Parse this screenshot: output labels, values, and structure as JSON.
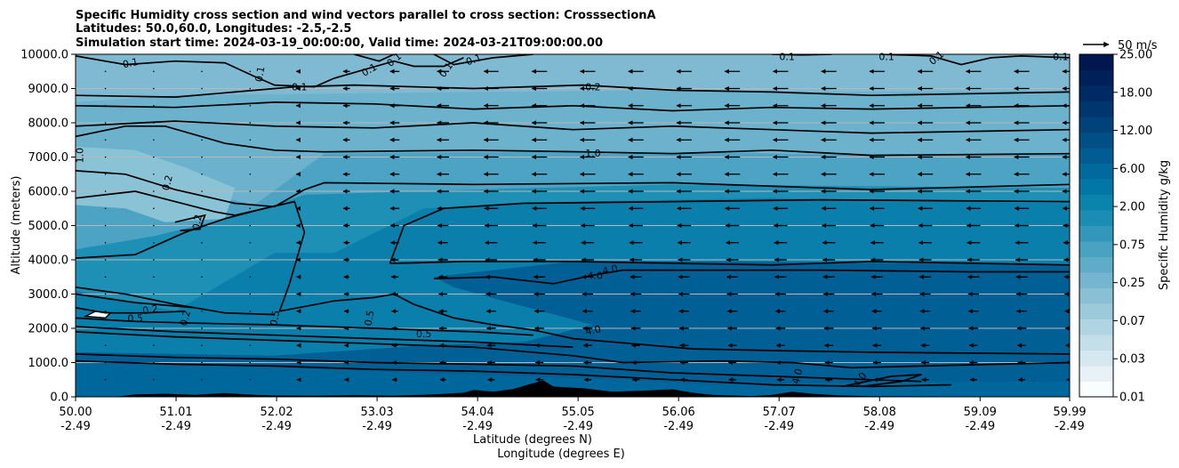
{
  "chart_data": {
    "type": "contour_cross_section",
    "title_lines": [
      "Specific Humidity cross section and wind vectors parallel to cross section: CrosssectionA",
      "Latitudes: 50.0,60.0, Longitudes: -2.5,-2.5",
      "Simulation start time: 2024-03-19_00:00:00, Valid time: 2024-03-21T09:00:00.00"
    ],
    "ylabel": "Altitude (meters)",
    "xlabel_lines": [
      "Latitude (degrees N)",
      "Longitude (degrees E)"
    ],
    "ylim": [
      0,
      10000
    ],
    "xlim": [
      50.0,
      59.99
    ],
    "y_ticks": [
      {
        "value": 0,
        "label": "0.0"
      },
      {
        "value": 1000,
        "label": "1000.0"
      },
      {
        "value": 2000,
        "label": "2000.0"
      },
      {
        "value": 3000,
        "label": "3000.0"
      },
      {
        "value": 4000,
        "label": "4000.0"
      },
      {
        "value": 5000,
        "label": "5000.0"
      },
      {
        "value": 6000,
        "label": "6000.0"
      },
      {
        "value": 7000,
        "label": "7000.0"
      },
      {
        "value": 8000,
        "label": "8000.0"
      },
      {
        "value": 9000,
        "label": "9000.0"
      },
      {
        "value": 10000,
        "label": "10000.0"
      }
    ],
    "x_ticks": [
      {
        "value": 50.0,
        "lat": "50.00",
        "lon": "-2.49"
      },
      {
        "value": 51.01,
        "lat": "51.01",
        "lon": "-2.49"
      },
      {
        "value": 52.02,
        "lat": "52.02",
        "lon": "-2.49"
      },
      {
        "value": 53.03,
        "lat": "53.03",
        "lon": "-2.49"
      },
      {
        "value": 54.04,
        "lat": "54.04",
        "lon": "-2.49"
      },
      {
        "value": 55.05,
        "lat": "55.05",
        "lon": "-2.49"
      },
      {
        "value": 56.06,
        "lat": "56.06",
        "lon": "-2.49"
      },
      {
        "value": 57.07,
        "lat": "57.07",
        "lon": "-2.49"
      },
      {
        "value": 58.08,
        "lat": "58.08",
        "lon": "-2.49"
      },
      {
        "value": 59.09,
        "lat": "59.09",
        "lon": "-2.49"
      },
      {
        "value": 59.99,
        "lat": "59.99",
        "lon": "-2.49"
      }
    ],
    "grid": "horizontal",
    "colorbar": {
      "label": "Specific Humidity g/kg",
      "tick_labels": [
        "0.01",
        "0.03",
        "0.07",
        "0.25",
        "0.75",
        "2.00",
        "6.00",
        "12.00",
        "18.00",
        "25.00"
      ],
      "colors": [
        "#fafdfe",
        "#e8f2f6",
        "#d6e8ef",
        "#c4dfe8",
        "#b1d4e2",
        "#9dcadb",
        "#8ac0d5",
        "#75b5cf",
        "#5facc8",
        "#49a2c2",
        "#3297bb",
        "#1b8db4",
        "#0a83ad",
        "#0276a6",
        "#00699d",
        "#005c92",
        "#004f86",
        "#00437a",
        "#00366e",
        "#002a63",
        "#002059",
        "#00174f"
      ]
    },
    "quiver_key": {
      "label": "50 m/s",
      "speed": 50
    },
    "contour_labels": [
      {
        "text": "0.1",
        "x": 50.55,
        "y": 9750,
        "rot": -12
      },
      {
        "text": "0.1",
        "x": 51.85,
        "y": 9420,
        "rot": -80
      },
      {
        "text": "0.1",
        "x": 52.25,
        "y": 9050,
        "rot": 0
      },
      {
        "text": "0.1",
        "x": 52.95,
        "y": 9550,
        "rot": -30
      },
      {
        "text": "0.1",
        "x": 53.2,
        "y": 9850,
        "rot": -40
      },
      {
        "text": "0.1",
        "x": 53.72,
        "y": 9550,
        "rot": -55
      },
      {
        "text": "0.1",
        "x": 54.0,
        "y": 9850,
        "rot": -20
      },
      {
        "text": "0.1",
        "x": 57.15,
        "y": 9930,
        "rot": 0
      },
      {
        "text": "0.1",
        "x": 58.15,
        "y": 9930,
        "rot": 0
      },
      {
        "text": "0.1",
        "x": 58.65,
        "y": 9900,
        "rot": -40
      },
      {
        "text": "0.1",
        "x": 59.9,
        "y": 9930,
        "rot": 0
      },
      {
        "text": "0.2",
        "x": 55.2,
        "y": 9050,
        "rot": 0
      },
      {
        "text": "1.0",
        "x": 55.2,
        "y": 7120,
        "rot": 0
      },
      {
        "text": "1.0",
        "x": 50.04,
        "y": 7050,
        "rot": -90
      },
      {
        "text": "0.2",
        "x": 50.92,
        "y": 6250,
        "rot": -75
      },
      {
        "text": "0.2",
        "x": 51.22,
        "y": 5100,
        "rot": -80
      },
      {
        "text": "4.0",
        "x": 55.22,
        "y": 3550,
        "rot": 0
      },
      {
        "text": "4.0",
        "x": 55.37,
        "y": 3720,
        "rot": -12
      },
      {
        "text": "0.2",
        "x": 50.75,
        "y": 2550,
        "rot": -10
      },
      {
        "text": "0.2",
        "x": 51.1,
        "y": 2300,
        "rot": -75
      },
      {
        "text": "0.5",
        "x": 50.6,
        "y": 2300,
        "rot": 0
      },
      {
        "text": "0.5",
        "x": 52.0,
        "y": 2300,
        "rot": -80
      },
      {
        "text": "0.5",
        "x": 52.95,
        "y": 2300,
        "rot": -80
      },
      {
        "text": "0.5",
        "x": 53.5,
        "y": 1850,
        "rot": 0
      },
      {
        "text": "4.0",
        "x": 55.2,
        "y": 1950,
        "rot": -12
      },
      {
        "text": "4.0",
        "x": 57.25,
        "y": 600,
        "rot": -75
      },
      {
        "text": "4.0",
        "x": 57.88,
        "y": 500,
        "rot": -55
      }
    ]
  }
}
